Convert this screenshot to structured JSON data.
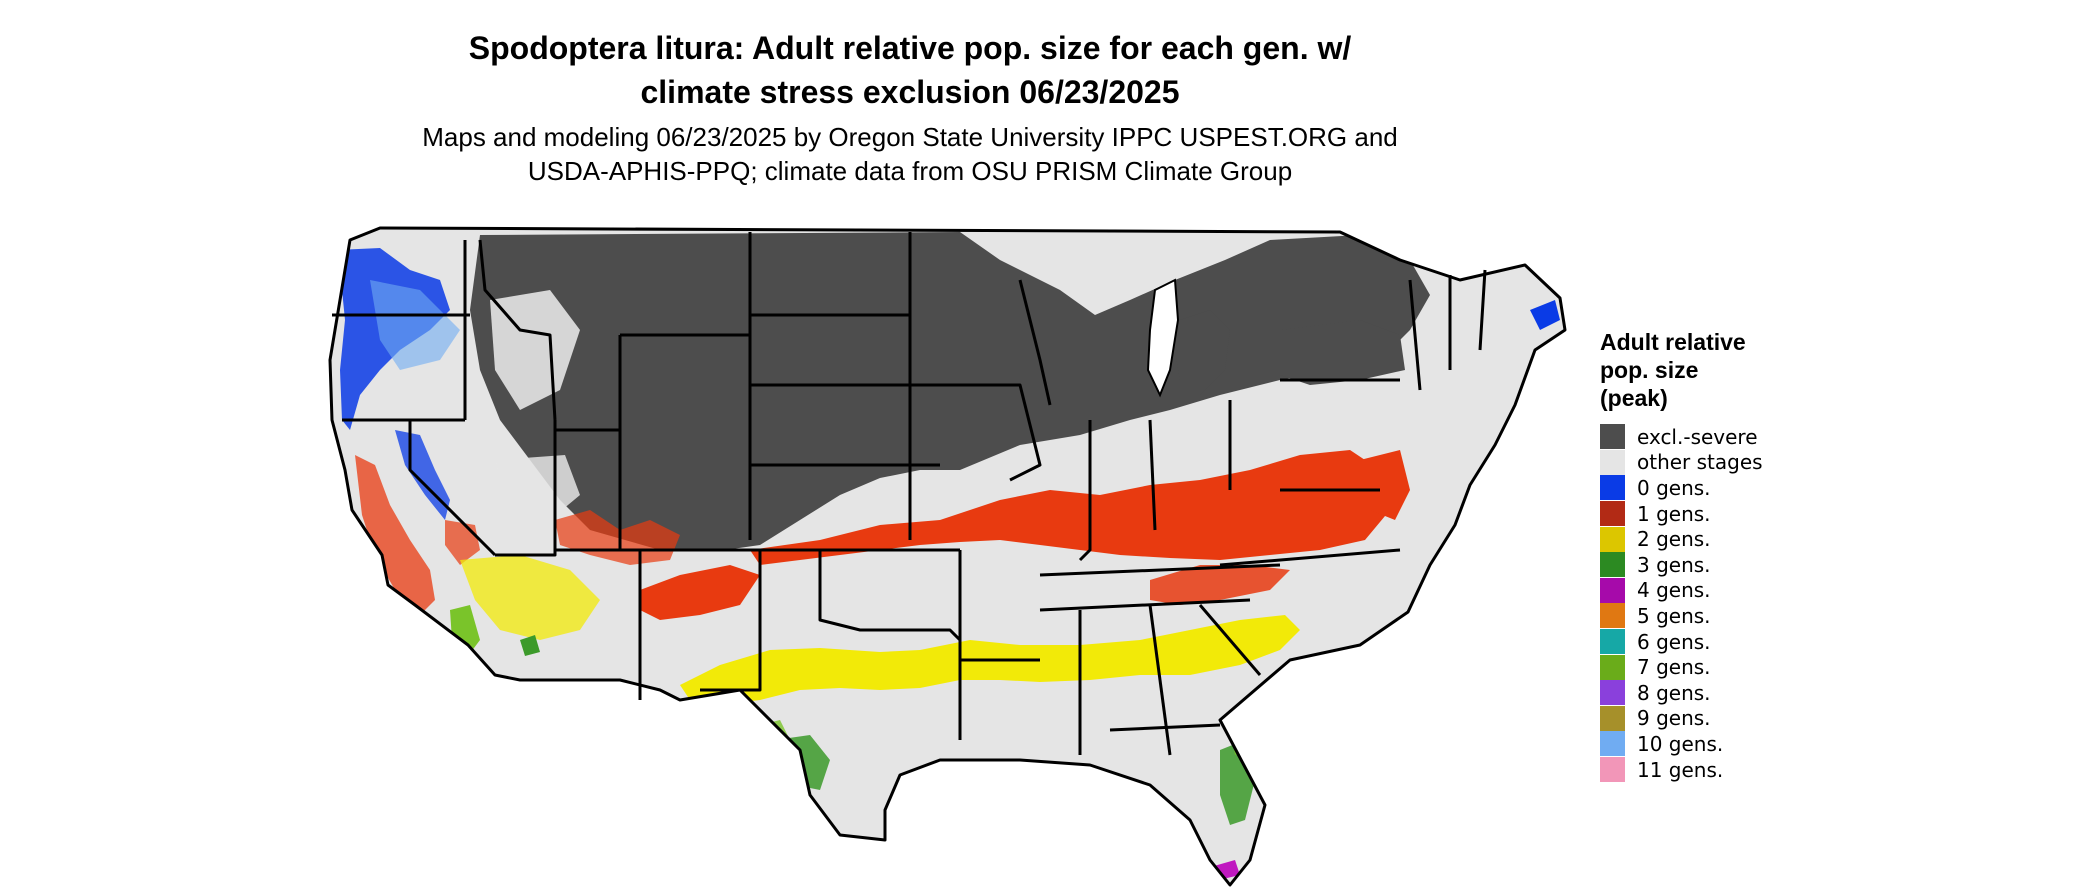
{
  "map": {
    "title_line1": "Spodoptera litura: Adult relative pop. size for each gen. w/",
    "title_line2": "climate stress exclusion 06/23/2025",
    "subtitle_line1": "Maps and modeling 06/23/2025 by Oregon State University IPPC USPEST.ORG and",
    "subtitle_line2": "USDA-APHIS-PPQ; climate data from OSU PRISM Climate Group",
    "region": "Contiguous United States"
  },
  "legend": {
    "title_line1": "Adult relative",
    "title_line2": "pop. size",
    "title_line3": "(peak)",
    "items": [
      {
        "label": "excl.-severe",
        "color": "#4d4d4d"
      },
      {
        "label": "other stages",
        "color": "#e5e5e5"
      },
      {
        "label": "0 gens.",
        "color": "#0a3be6"
      },
      {
        "label": "1 gens.",
        "color": "#b22a15"
      },
      {
        "label": "2 gens.",
        "color": "#dcc600"
      },
      {
        "label": "3 gens.",
        "color": "#2c8a22"
      },
      {
        "label": "4 gens.",
        "color": "#a60aaa"
      },
      {
        "label": "5 gens.",
        "color": "#e07812"
      },
      {
        "label": "6 gens.",
        "color": "#16a8a6"
      },
      {
        "label": "7 gens.",
        "color": "#6aac1a"
      },
      {
        "label": "8 gens.",
        "color": "#8a40dc"
      },
      {
        "label": "9 gens.",
        "color": "#a6902a"
      },
      {
        "label": "10 gens.",
        "color": "#70acf2"
      },
      {
        "label": "11 gens.",
        "color": "#f296b8"
      }
    ]
  },
  "colors": {
    "excluded": "#4d4d4d",
    "other": "#e5e5e5",
    "gen0": "#0a3be6",
    "gen1_map": "#e83a10",
    "gen2_map": "#f2ea08",
    "gen3_map": "#3c9a2a",
    "gen7_map": "#7ac42a",
    "gen4_map": "#c018c0",
    "border": "#000000"
  }
}
